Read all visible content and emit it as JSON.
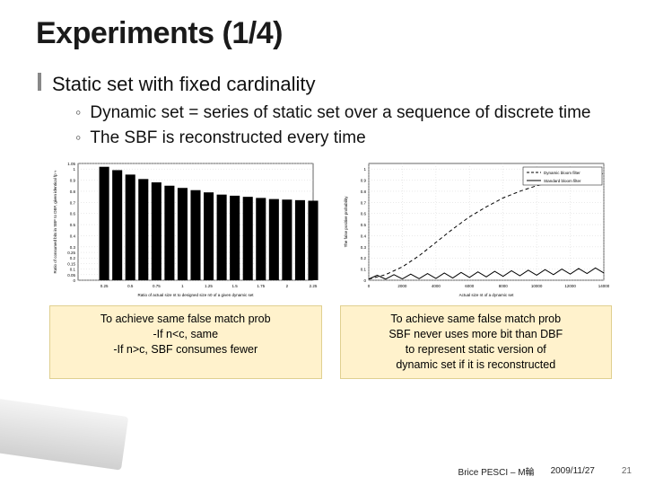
{
  "title": "Experiments (1/4)",
  "bullet": "Static set with fixed cardinality",
  "subs": [
    "Dynamic set = series of static set over a sequence of discrete time",
    "The SBF is reconstructed every time"
  ],
  "chart1": {
    "type": "bar",
    "xlabel": "Ratio of actual size nt to designed size n0 of a given dynamic set",
    "ylabel": "Ratio of consumed bits in SBF to DBF, given identical fp ≈",
    "label_fontsize": 4.5,
    "bar_color": "#000000",
    "grid_color": "#cccccc",
    "axis_color": "#000000",
    "background": "#ffffff",
    "xlim": [
      0,
      2.25
    ],
    "ylim": [
      0,
      1.05
    ],
    "xticks": [
      0.25,
      0.5,
      0.75,
      1.0,
      1.25,
      1.5,
      1.75,
      2.0,
      2.25
    ],
    "yticks": [
      0,
      0.05,
      0.1,
      0.15,
      0.2,
      0.25,
      0.3,
      0.4,
      0.5,
      0.6,
      0.7,
      0.8,
      0.9,
      1.0,
      1.05
    ],
    "x": [
      0.25,
      0.375,
      0.5,
      0.625,
      0.75,
      0.875,
      1.0,
      1.125,
      1.25,
      1.375,
      1.5,
      1.625,
      1.75,
      1.875,
      2.0,
      2.125,
      2.25
    ],
    "y": [
      1.02,
      0.99,
      0.95,
      0.91,
      0.88,
      0.85,
      0.83,
      0.81,
      0.79,
      0.77,
      0.76,
      0.75,
      0.74,
      0.73,
      0.725,
      0.72,
      0.715
    ],
    "bar_width": 0.095
  },
  "chart2": {
    "type": "line",
    "xlabel": "Actual size nt of a dynamic set",
    "ylabel": "The false positive probability",
    "label_fontsize": 4.5,
    "line_color": "#000000",
    "grid_color": "#cccccc",
    "axis_color": "#000000",
    "background": "#ffffff",
    "legend": [
      "Dynamic bloom filter",
      "Standard bloom filter"
    ],
    "legend_pos": "top-right",
    "xlim": [
      0,
      14000
    ],
    "ylim": [
      0,
      1.05
    ],
    "xticks": [
      0,
      2000,
      4000,
      6000,
      8000,
      10000,
      12000,
      14000
    ],
    "yticks": [
      0,
      0.1,
      0.2,
      0.3,
      0.4,
      0.5,
      0.6,
      0.7,
      0.8,
      0.9,
      1.0
    ],
    "series_dbf": {
      "style": "dashed",
      "width": 1.0,
      "x": [
        0,
        1000,
        2000,
        3000,
        4000,
        5000,
        6000,
        7000,
        8000,
        9000,
        10000,
        11000,
        12000,
        13000,
        14000
      ],
      "y": [
        0.01,
        0.05,
        0.12,
        0.22,
        0.34,
        0.46,
        0.57,
        0.66,
        0.74,
        0.8,
        0.85,
        0.89,
        0.92,
        0.94,
        0.96
      ]
    },
    "series_sbf": {
      "style": "solid",
      "width": 1.0,
      "x": [
        0,
        500,
        1000,
        1500,
        2000,
        2500,
        3000,
        3500,
        4000,
        4500,
        5000,
        5500,
        6000,
        6500,
        7000,
        7500,
        8000,
        8500,
        9000,
        9500,
        10000,
        10500,
        11000,
        11500,
        12000,
        12500,
        13000,
        13500,
        14000
      ],
      "y": [
        0.01,
        0.045,
        0.01,
        0.05,
        0.012,
        0.055,
        0.014,
        0.06,
        0.016,
        0.065,
        0.02,
        0.07,
        0.025,
        0.075,
        0.03,
        0.08,
        0.035,
        0.085,
        0.04,
        0.09,
        0.045,
        0.095,
        0.05,
        0.1,
        0.055,
        0.105,
        0.06,
        0.11,
        0.065
      ]
    }
  },
  "caption1": {
    "line1": "To achieve same false match prob",
    "line2": "-If n<c, same",
    "line3": "-If n>c, SBF consumes fewer"
  },
  "caption2": {
    "line1": "To achieve same false match prob",
    "line2": "SBF never uses more bit than DBF",
    "line3": "to represent static version of",
    "line4": "dynamic set if it is reconstructed"
  },
  "footer": {
    "author": "Brice PESCI – M輪",
    "date": "2009/11/27",
    "page": "21"
  }
}
